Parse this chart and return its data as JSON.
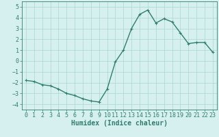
{
  "x": [
    0,
    1,
    2,
    3,
    4,
    5,
    6,
    7,
    8,
    9,
    10,
    11,
    12,
    13,
    14,
    15,
    16,
    17,
    18,
    19,
    20,
    21,
    22,
    23
  ],
  "y": [
    -1.8,
    -1.9,
    -2.2,
    -2.3,
    -2.6,
    -3.0,
    -3.2,
    -3.5,
    -3.7,
    -3.8,
    -2.6,
    -0.1,
    1.0,
    3.0,
    4.3,
    4.7,
    3.5,
    3.9,
    3.6,
    2.6,
    1.6,
    1.7,
    1.7,
    0.8
  ],
  "line_color": "#2e7d6e",
  "marker": "+",
  "markersize": 3,
  "linewidth": 1.0,
  "bg_color": "#d6f0f0",
  "grid_color": "#aad4d4",
  "xlabel": "Humidex (Indice chaleur)",
  "xlabel_fontsize": 7,
  "yticks": [
    -4,
    -3,
    -2,
    -1,
    0,
    1,
    2,
    3,
    4,
    5
  ],
  "xticks": [
    0,
    1,
    2,
    3,
    4,
    5,
    6,
    7,
    8,
    9,
    10,
    11,
    12,
    13,
    14,
    15,
    16,
    17,
    18,
    19,
    20,
    21,
    22,
    23
  ],
  "ylim": [
    -4.5,
    5.5
  ],
  "xlim": [
    -0.5,
    23.5
  ],
  "tick_fontsize": 6,
  "axis_color": "#2e7d6e"
}
